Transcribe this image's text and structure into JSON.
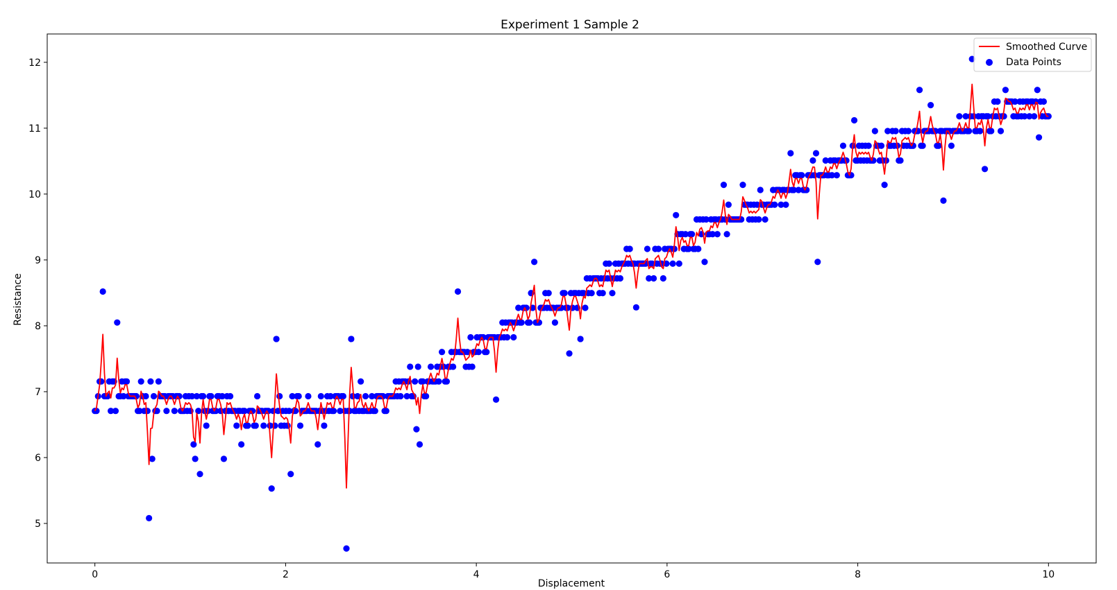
{
  "chart_data": {
    "type": "scatter",
    "title": "Experiment 1 Sample 2",
    "xlabel": "Displacement",
    "ylabel": "Resistance",
    "xlim": [
      -0.5,
      10.5
    ],
    "ylim": [
      4.4,
      12.43
    ],
    "xticks": [
      0,
      2,
      4,
      6,
      8,
      10
    ],
    "yticks": [
      5,
      6,
      7,
      8,
      9,
      10,
      11,
      12
    ],
    "grid": false,
    "legend": {
      "placement": "top-right",
      "entries": [
        "Smoothed Curve",
        "Data Points"
      ]
    },
    "series": [
      {
        "name": "Smoothed Curve",
        "kind": "line",
        "color": "#ff0000"
      },
      {
        "name": "Data Points",
        "kind": "scatter",
        "color": "#0000ff"
      }
    ],
    "n_points": 600,
    "x_range": [
      0,
      10
    ],
    "base_trend": {
      "x": [
        0,
        1.0,
        1.5,
        2.3,
        2.6,
        3.0,
        3.2,
        3.5,
        3.8,
        4.1,
        4.3,
        4.6,
        5.0,
        5.3,
        5.6,
        6.0,
        6.3,
        6.6,
        7.0,
        7.3,
        7.7,
        8.2,
        8.6,
        9.0,
        9.4,
        9.6,
        10.0
      ],
      "y": [
        7.0,
        6.8,
        6.65,
        6.7,
        6.85,
        6.9,
        7.1,
        7.15,
        7.45,
        7.8,
        7.95,
        8.3,
        8.35,
        8.65,
        8.9,
        9.05,
        9.4,
        9.6,
        9.8,
        10.1,
        10.4,
        10.65,
        10.85,
        10.9,
        11.1,
        11.3,
        11.25
      ]
    },
    "quantization_step": 0.2236,
    "outliers": [
      {
        "x": 0.08,
        "y": 8.52
      },
      {
        "x": 0.24,
        "y": 8.05
      },
      {
        "x": 0.56,
        "y": 5.08
      },
      {
        "x": 0.6,
        "y": 5.98
      },
      {
        "x": 1.04,
        "y": 6.2
      },
      {
        "x": 1.06,
        "y": 5.98
      },
      {
        "x": 1.11,
        "y": 5.75
      },
      {
        "x": 1.36,
        "y": 5.98
      },
      {
        "x": 1.54,
        "y": 6.2
      },
      {
        "x": 1.86,
        "y": 5.53
      },
      {
        "x": 1.9,
        "y": 7.8
      },
      {
        "x": 2.05,
        "y": 5.75
      },
      {
        "x": 2.33,
        "y": 6.2
      },
      {
        "x": 2.64,
        "y": 4.62
      },
      {
        "x": 2.68,
        "y": 7.8
      },
      {
        "x": 3.38,
        "y": 6.43
      },
      {
        "x": 3.41,
        "y": 6.2
      },
      {
        "x": 3.8,
        "y": 8.52
      },
      {
        "x": 4.2,
        "y": 6.88
      },
      {
        "x": 4.6,
        "y": 8.97
      },
      {
        "x": 4.98,
        "y": 7.58
      },
      {
        "x": 5.1,
        "y": 7.8
      },
      {
        "x": 5.68,
        "y": 8.28
      },
      {
        "x": 6.1,
        "y": 9.68
      },
      {
        "x": 6.4,
        "y": 8.97
      },
      {
        "x": 6.6,
        "y": 10.14
      },
      {
        "x": 6.8,
        "y": 10.14
      },
      {
        "x": 7.3,
        "y": 10.62
      },
      {
        "x": 7.58,
        "y": 8.97
      },
      {
        "x": 7.56,
        "y": 10.62
      },
      {
        "x": 7.97,
        "y": 11.12
      },
      {
        "x": 8.28,
        "y": 10.14
      },
      {
        "x": 8.64,
        "y": 11.58
      },
      {
        "x": 8.76,
        "y": 11.35
      },
      {
        "x": 8.89,
        "y": 9.9
      },
      {
        "x": 9.2,
        "y": 12.05
      },
      {
        "x": 9.34,
        "y": 10.38
      },
      {
        "x": 9.55,
        "y": 11.58
      },
      {
        "x": 9.88,
        "y": 11.58
      },
      {
        "x": 9.9,
        "y": 10.86
      }
    ]
  },
  "colors": {
    "line": "#ff0000",
    "points": "#0000ff",
    "axes": "#000000",
    "background": "#ffffff"
  }
}
